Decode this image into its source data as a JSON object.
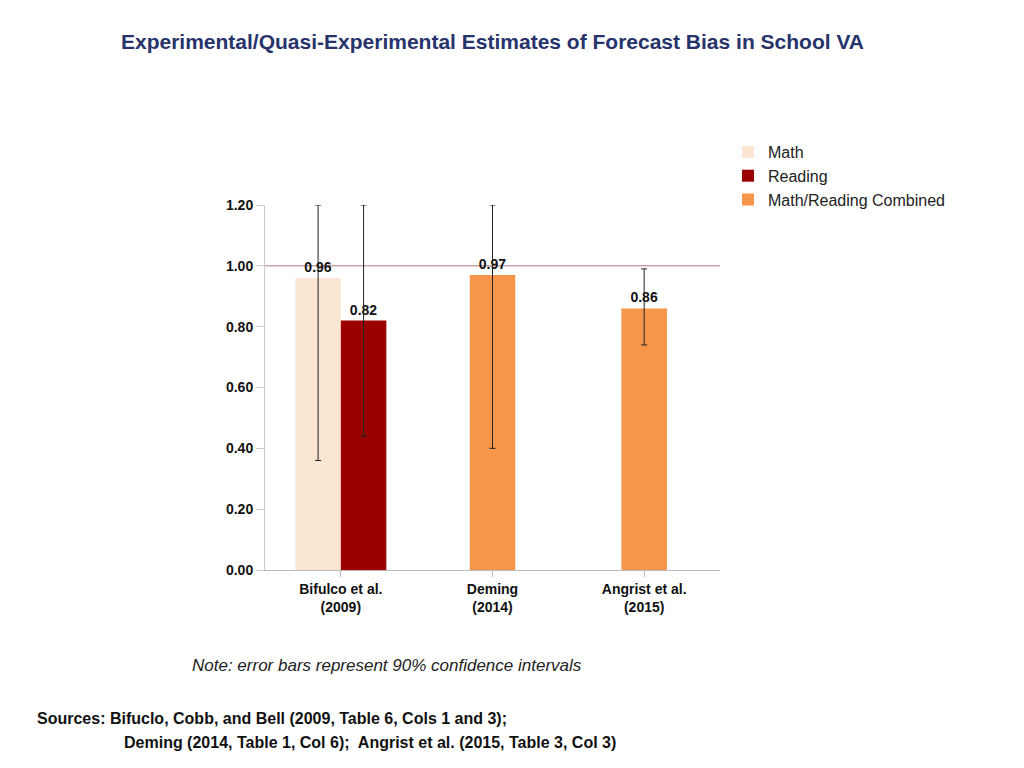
{
  "chart_data": {
    "type": "bar",
    "title": "Experimental/Quasi-Experimental Estimates of Forecast Bias in School VA",
    "categories": [
      "Bifulco et al. (2009)",
      "Deming (2014)",
      "Angrist et al. (2015)"
    ],
    "series": [
      {
        "name": "Math",
        "color": "#fbe6d4",
        "values": [
          0.96,
          null,
          null
        ],
        "error_low": [
          0.36,
          null,
          null
        ],
        "error_high": [
          1.2,
          null,
          null
        ]
      },
      {
        "name": "Reading",
        "color": "#9b0000",
        "values": [
          0.82,
          null,
          null
        ],
        "error_low": [
          0.44,
          null,
          null
        ],
        "error_high": [
          1.2,
          null,
          null
        ]
      },
      {
        "name": "Math/Reading Combined",
        "color": "#f5964a",
        "values": [
          null,
          0.97,
          0.86
        ],
        "error_low": [
          null,
          0.4,
          0.74
        ],
        "error_high": [
          null,
          1.2,
          0.99
        ]
      }
    ],
    "ylim": [
      0,
      1.2
    ],
    "yticks": [
      {
        "value": 0,
        "label": "0.00"
      },
      {
        "value": 0.2,
        "label": "0.20"
      },
      {
        "value": 0.4,
        "label": "0.40"
      },
      {
        "value": 0.6,
        "label": "0.60"
      },
      {
        "value": 0.8,
        "label": "0.80"
      },
      {
        "value": 1,
        "label": "1.00"
      },
      {
        "value": 1.2,
        "label": "1.20"
      }
    ],
    "reference_line": 1,
    "grid": false,
    "legend": "right",
    "data_labels": true,
    "note": "Note: error bars represent 90% confidence intervals",
    "sources": [
      "Sources: Bifuclo, Cobb, and Bell (2009, Table 6, Cols 1 and 3);",
      "Deming (2014, Table 1, Col 6);  Angrist et al. (2015, Table 3, Col 3)"
    ]
  }
}
